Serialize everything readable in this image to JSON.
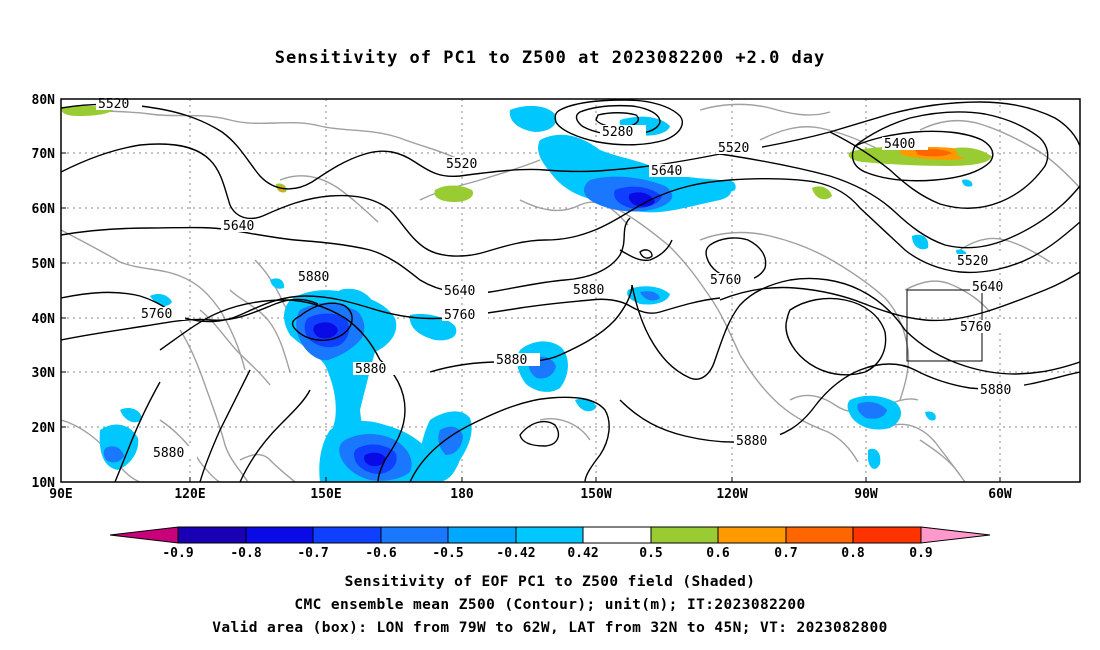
{
  "title": "Sensitivity of PC1 to Z500 at 2023082200 +2.0 day",
  "map": {
    "lat_labels": [
      "80N",
      "70N",
      "60N",
      "50N",
      "40N",
      "30N",
      "20N",
      "10N"
    ],
    "lon_labels": [
      "90E",
      "120E",
      "150E",
      "180",
      "150W",
      "120W",
      "90W",
      "60W"
    ],
    "contour_labels": [
      "5520",
      "5280",
      "5520",
      "5520",
      "5640",
      "5400",
      "5640",
      "5880",
      "5640",
      "5760",
      "5880",
      "5760",
      "5880",
      "5880",
      "5760",
      "5880",
      "5880",
      "5520",
      "5640",
      "5760",
      "5880"
    ],
    "valid_box": {
      "lon_from": -79,
      "lon_to": -62,
      "lat_from": 32,
      "lat_to": 45
    }
  },
  "colorbar": {
    "labels": [
      "-0.9",
      "-0.8",
      "-0.7",
      "-0.6",
      "-0.5",
      "-0.42",
      "0.42",
      "0.5",
      "0.6",
      "0.7",
      "0.8",
      "0.9"
    ],
    "colors": [
      "#c8007a",
      "#1a00b4",
      "#0a0ae6",
      "#1040ff",
      "#1a78ff",
      "#00a8ff",
      "#00c8ff",
      "#ffffff",
      "#99cc33",
      "#ff9900",
      "#ff6600",
      "#ff3300",
      "#ff0000",
      "#ff99cc"
    ]
  },
  "captions": {
    "line1": "Sensitivity of EOF PC1 to Z500 field (Shaded)",
    "line2": "CMC ensemble mean Z500 (Contour); unit(m); IT:2023082200",
    "line3": "Valid area (box): LON from 79W to 62W, LAT from 32N to 45N; VT: 2023082800"
  }
}
